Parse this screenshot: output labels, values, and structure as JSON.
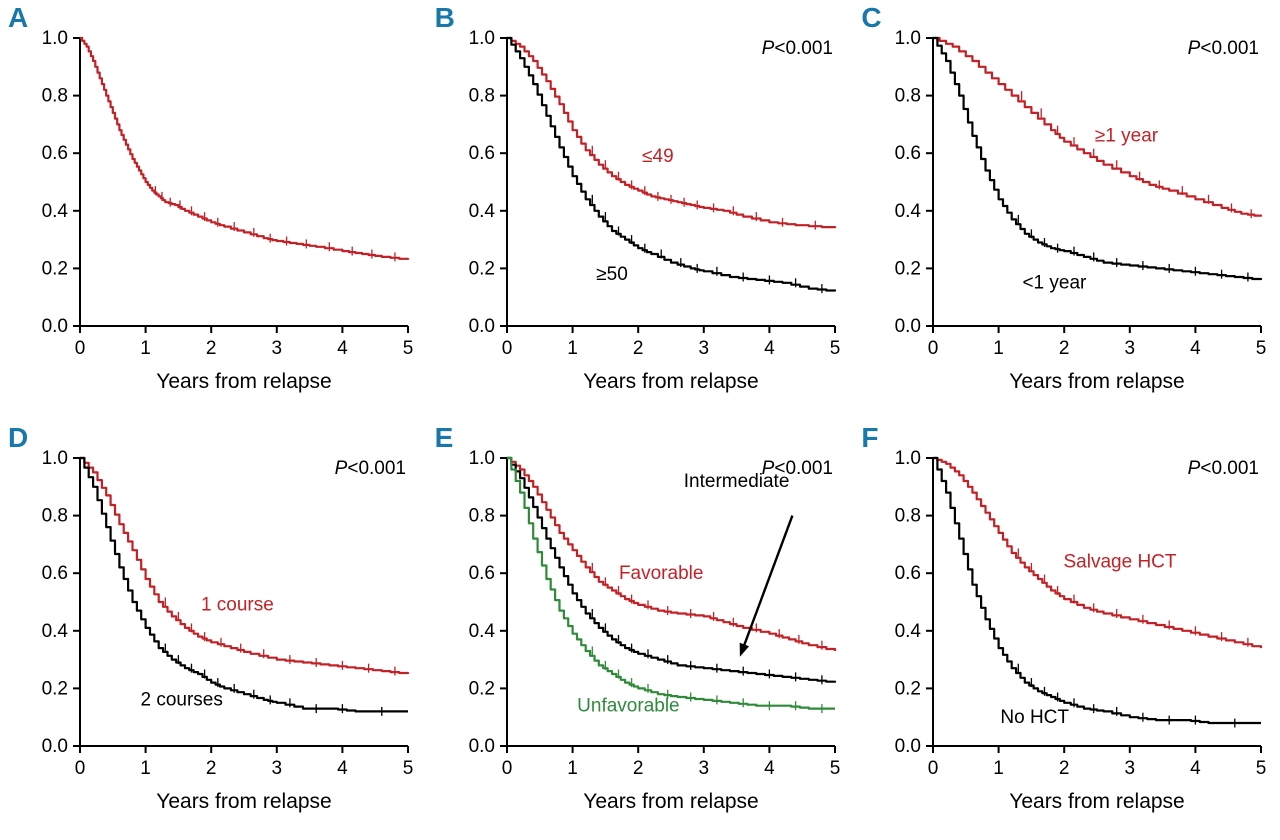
{
  "figure": {
    "xlabel": "Years from relapse",
    "colors": {
      "red": "#c42127",
      "black": "#000000",
      "green": "#2f8a3a",
      "panel_letter": "#1878ab",
      "axis": "#000000"
    }
  },
  "chart_data": [
    {
      "type": "line",
      "panel": "A",
      "p_value": "",
      "xlabel": "Years from relapse",
      "xlim": [
        0,
        5
      ],
      "ylim": [
        0,
        1
      ],
      "xticks": [
        0,
        1,
        2,
        3,
        4,
        5
      ],
      "yticks": [
        0.0,
        0.2,
        0.4,
        0.6,
        0.8,
        1.0
      ],
      "series": [
        {
          "name": "",
          "color": "red",
          "label": "",
          "label_pos": null,
          "x": [
            0,
            0.1,
            0.2,
            0.3,
            0.4,
            0.5,
            0.6,
            0.7,
            0.8,
            0.9,
            1.0,
            1.1,
            1.2,
            1.3,
            1.45,
            1.6,
            1.8,
            2.0,
            2.2,
            2.5,
            2.8,
            3.0,
            3.3,
            3.6,
            4.0,
            4.3,
            4.6,
            5.0
          ],
          "y": [
            1.0,
            0.97,
            0.92,
            0.86,
            0.8,
            0.74,
            0.68,
            0.63,
            0.58,
            0.54,
            0.5,
            0.47,
            0.45,
            0.43,
            0.42,
            0.4,
            0.38,
            0.36,
            0.345,
            0.325,
            0.305,
            0.295,
            0.285,
            0.275,
            0.26,
            0.25,
            0.24,
            0.23
          ]
        }
      ]
    },
    {
      "type": "line",
      "panel": "B",
      "p_value": "P<0.001",
      "xlabel": "Years from relapse",
      "xlim": [
        0,
        5
      ],
      "ylim": [
        0,
        1
      ],
      "xticks": [
        0,
        1,
        2,
        3,
        4,
        5
      ],
      "yticks": [
        0.0,
        0.2,
        0.4,
        0.6,
        0.8,
        1.0
      ],
      "series": [
        {
          "name": "≤49",
          "color": "red",
          "label": "≤49",
          "label_pos": [
            2.3,
            0.57
          ],
          "x": [
            0,
            0.2,
            0.4,
            0.6,
            0.8,
            1.0,
            1.2,
            1.4,
            1.6,
            1.8,
            2.0,
            2.2,
            2.4,
            2.6,
            2.8,
            3.0,
            3.3,
            3.6,
            4.0,
            4.4,
            5.0
          ],
          "y": [
            1.0,
            0.97,
            0.92,
            0.85,
            0.77,
            0.68,
            0.61,
            0.56,
            0.52,
            0.49,
            0.47,
            0.45,
            0.44,
            0.43,
            0.42,
            0.41,
            0.4,
            0.38,
            0.36,
            0.35,
            0.34
          ]
        },
        {
          "name": "≥50",
          "color": "black",
          "label": "≥50",
          "label_pos": [
            1.6,
            0.16
          ],
          "x": [
            0,
            0.2,
            0.4,
            0.6,
            0.8,
            1.0,
            1.2,
            1.4,
            1.6,
            1.8,
            2.0,
            2.2,
            2.5,
            2.8,
            3.0,
            3.4,
            3.8,
            4.2,
            4.6,
            5.0
          ],
          "y": [
            1.0,
            0.93,
            0.84,
            0.73,
            0.62,
            0.52,
            0.44,
            0.38,
            0.33,
            0.3,
            0.27,
            0.25,
            0.22,
            0.2,
            0.19,
            0.17,
            0.16,
            0.15,
            0.13,
            0.12
          ]
        }
      ]
    },
    {
      "type": "line",
      "panel": "C",
      "p_value": "P<0.001",
      "xlabel": "Years from relapse",
      "xlim": [
        0,
        5
      ],
      "ylim": [
        0,
        1
      ],
      "xticks": [
        0,
        1,
        2,
        3,
        4,
        5
      ],
      "yticks": [
        0.0,
        0.2,
        0.4,
        0.6,
        0.8,
        1.0
      ],
      "series": [
        {
          "name": "≥1 year",
          "color": "red",
          "label": "≥1 year",
          "label_pos": [
            2.95,
            0.64
          ],
          "x": [
            0,
            0.3,
            0.6,
            0.9,
            1.2,
            1.5,
            1.8,
            2.0,
            2.3,
            2.6,
            3.0,
            3.3,
            3.6,
            4.0,
            4.4,
            4.7,
            5.0
          ],
          "y": [
            1.0,
            0.97,
            0.92,
            0.86,
            0.8,
            0.74,
            0.68,
            0.64,
            0.6,
            0.56,
            0.52,
            0.49,
            0.47,
            0.44,
            0.41,
            0.39,
            0.38
          ]
        },
        {
          "name": "<1 year",
          "color": "black",
          "label": "<1 year",
          "label_pos": [
            1.85,
            0.13
          ],
          "x": [
            0,
            0.2,
            0.4,
            0.6,
            0.8,
            1.0,
            1.2,
            1.4,
            1.6,
            1.8,
            2.0,
            2.3,
            2.6,
            3.0,
            3.4,
            3.8,
            4.2,
            4.6,
            5.0
          ],
          "y": [
            1.0,
            0.92,
            0.8,
            0.66,
            0.54,
            0.44,
            0.37,
            0.32,
            0.29,
            0.27,
            0.26,
            0.24,
            0.22,
            0.21,
            0.2,
            0.19,
            0.18,
            0.17,
            0.16
          ]
        }
      ]
    },
    {
      "type": "line",
      "panel": "D",
      "p_value": "P<0.001",
      "xlabel": "Years from relapse",
      "xlim": [
        0,
        5
      ],
      "ylim": [
        0,
        1
      ],
      "xticks": [
        0,
        1,
        2,
        3,
        4,
        5
      ],
      "yticks": [
        0.0,
        0.2,
        0.4,
        0.6,
        0.8,
        1.0
      ],
      "series": [
        {
          "name": "1 course",
          "color": "red",
          "label": "1 course",
          "label_pos": [
            2.4,
            0.47
          ],
          "x": [
            0,
            0.2,
            0.4,
            0.6,
            0.8,
            1.0,
            1.2,
            1.4,
            1.6,
            1.8,
            2.0,
            2.3,
            2.6,
            3.0,
            3.4,
            3.8,
            4.2,
            4.6,
            5.0
          ],
          "y": [
            1.0,
            0.95,
            0.87,
            0.77,
            0.68,
            0.58,
            0.5,
            0.45,
            0.41,
            0.38,
            0.36,
            0.34,
            0.32,
            0.3,
            0.29,
            0.28,
            0.27,
            0.26,
            0.25
          ]
        },
        {
          "name": "2 courses",
          "color": "black",
          "label": "2 courses",
          "label_pos": [
            1.55,
            0.14
          ],
          "x": [
            0,
            0.2,
            0.4,
            0.6,
            0.8,
            1.0,
            1.2,
            1.4,
            1.6,
            1.8,
            2.0,
            2.2,
            2.5,
            2.8,
            3.0,
            3.4,
            3.8,
            4.2,
            5.0
          ],
          "y": [
            1.0,
            0.9,
            0.76,
            0.62,
            0.5,
            0.41,
            0.34,
            0.3,
            0.27,
            0.25,
            0.22,
            0.2,
            0.18,
            0.16,
            0.15,
            0.13,
            0.13,
            0.12,
            0.12
          ]
        }
      ]
    },
    {
      "type": "line",
      "panel": "E",
      "p_value": "P<0.001",
      "xlabel": "Years from relapse",
      "xlim": [
        0,
        5
      ],
      "ylim": [
        0,
        1
      ],
      "xticks": [
        0,
        1,
        2,
        3,
        4,
        5
      ],
      "yticks": [
        0.0,
        0.2,
        0.4,
        0.6,
        0.8,
        1.0
      ],
      "arrow": {
        "from": [
          4.35,
          0.8
        ],
        "to": [
          3.55,
          0.31
        ]
      },
      "series": [
        {
          "name": "Favorable",
          "color": "red",
          "label": "Favorable",
          "label_pos": [
            2.35,
            0.58
          ],
          "x": [
            0,
            0.2,
            0.4,
            0.6,
            0.8,
            1.0,
            1.2,
            1.4,
            1.6,
            1.8,
            2.0,
            2.3,
            2.6,
            3.0,
            3.3,
            3.6,
            4.0,
            4.3,
            4.6,
            5.0
          ],
          "y": [
            1.0,
            0.96,
            0.9,
            0.82,
            0.74,
            0.68,
            0.62,
            0.57,
            0.54,
            0.51,
            0.49,
            0.47,
            0.46,
            0.45,
            0.43,
            0.41,
            0.39,
            0.37,
            0.35,
            0.33
          ]
        },
        {
          "name": "Intermediate",
          "color": "black",
          "label": "Intermediate",
          "label_pos": [
            3.5,
            0.9
          ],
          "x": [
            0,
            0.2,
            0.4,
            0.6,
            0.8,
            1.0,
            1.2,
            1.4,
            1.6,
            1.8,
            2.0,
            2.3,
            2.6,
            3.0,
            3.4,
            3.8,
            4.2,
            4.6,
            5.0
          ],
          "y": [
            1.0,
            0.93,
            0.83,
            0.72,
            0.62,
            0.53,
            0.46,
            0.41,
            0.37,
            0.34,
            0.32,
            0.3,
            0.28,
            0.27,
            0.26,
            0.25,
            0.24,
            0.23,
            0.22
          ]
        },
        {
          "name": "Unfavorable",
          "color": "green",
          "label": "Unfavorable",
          "label_pos": [
            1.85,
            0.12
          ],
          "x": [
            0,
            0.2,
            0.4,
            0.6,
            0.8,
            1.0,
            1.2,
            1.4,
            1.6,
            1.8,
            2.0,
            2.3,
            2.6,
            3.0,
            3.4,
            3.8,
            4.2,
            4.6,
            5.0
          ],
          "y": [
            1.0,
            0.88,
            0.72,
            0.58,
            0.47,
            0.39,
            0.33,
            0.28,
            0.25,
            0.22,
            0.2,
            0.18,
            0.17,
            0.16,
            0.15,
            0.14,
            0.14,
            0.13,
            0.13
          ]
        }
      ]
    },
    {
      "type": "line",
      "panel": "F",
      "p_value": "P<0.001",
      "xlabel": "Years from relapse",
      "xlim": [
        0,
        5
      ],
      "ylim": [
        0,
        1
      ],
      "xticks": [
        0,
        1,
        2,
        3,
        4,
        5
      ],
      "yticks": [
        0.0,
        0.2,
        0.4,
        0.6,
        0.8,
        1.0
      ],
      "series": [
        {
          "name": "Salvage HCT",
          "color": "red",
          "label": "Salvage HCT",
          "label_pos": [
            2.85,
            0.62
          ],
          "x": [
            0,
            0.2,
            0.4,
            0.6,
            0.8,
            1.0,
            1.2,
            1.4,
            1.6,
            1.8,
            2.0,
            2.3,
            2.6,
            3.0,
            3.4,
            3.8,
            4.2,
            4.6,
            5.0
          ],
          "y": [
            1.0,
            0.98,
            0.94,
            0.88,
            0.81,
            0.74,
            0.67,
            0.62,
            0.58,
            0.54,
            0.51,
            0.48,
            0.46,
            0.44,
            0.42,
            0.4,
            0.38,
            0.36,
            0.34
          ]
        },
        {
          "name": "No HCT",
          "color": "black",
          "label": "No HCT",
          "label_pos": [
            1.55,
            0.08
          ],
          "x": [
            0,
            0.2,
            0.4,
            0.6,
            0.8,
            1.0,
            1.2,
            1.4,
            1.6,
            1.8,
            2.0,
            2.3,
            2.6,
            3.0,
            3.4,
            3.8,
            4.2,
            5.0
          ],
          "y": [
            1.0,
            0.88,
            0.72,
            0.56,
            0.44,
            0.34,
            0.27,
            0.22,
            0.19,
            0.17,
            0.15,
            0.13,
            0.12,
            0.1,
            0.09,
            0.09,
            0.08,
            0.08
          ]
        }
      ]
    }
  ]
}
